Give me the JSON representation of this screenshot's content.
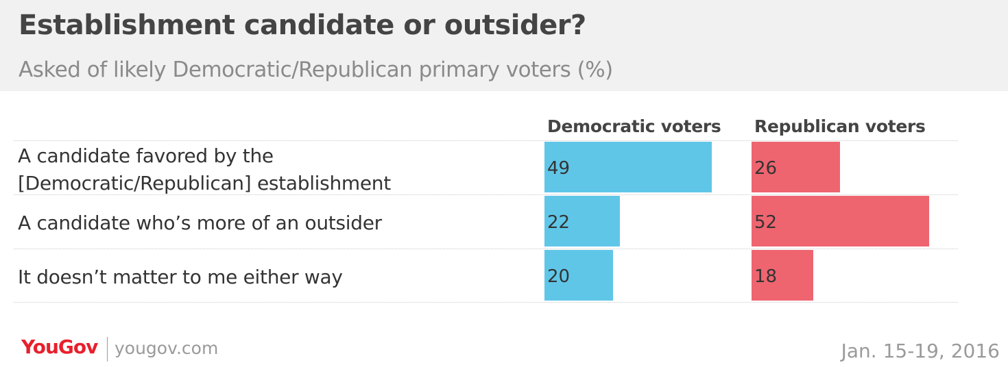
{
  "header": {
    "title": "Establishment candidate or outsider?",
    "subtitle": "Asked of likely Democratic/Republican primary voters (%)"
  },
  "colors": {
    "democratic": "#5fc6e8",
    "republican": "#ee6570",
    "header_bg": "#f1f1f1",
    "logo": "#e8202c"
  },
  "chart_data": {
    "type": "bar",
    "title": "Establishment candidate or outsider?",
    "subtitle": "Asked of likely Democratic/Republican primary voters (%)",
    "categories": [
      "A candidate favored by the [Democratic/Republican] establishment",
      "A candidate who’s more of an outsider",
      "It doesn’t matter to me either way"
    ],
    "series": [
      {
        "name": "Democratic voters",
        "values": [
          49,
          22,
          20
        ]
      },
      {
        "name": "Republican voters",
        "values": [
          26,
          52,
          18
        ]
      }
    ],
    "xlabel": "",
    "ylabel": "",
    "ylim": [
      0,
      100
    ],
    "grid": false
  },
  "rows": [
    {
      "label_line1": "A candidate favored by the",
      "label_line2": "[Democratic/Republican] establishment"
    },
    {
      "label_line1": "A candidate who’s more of an outsider"
    },
    {
      "label_line1": "It doesn’t matter to me either way"
    }
  ],
  "footer": {
    "logo_you": "You",
    "logo_gov": "Gov",
    "site": "yougov.com",
    "date": "Jan. 15-19, 2016"
  }
}
